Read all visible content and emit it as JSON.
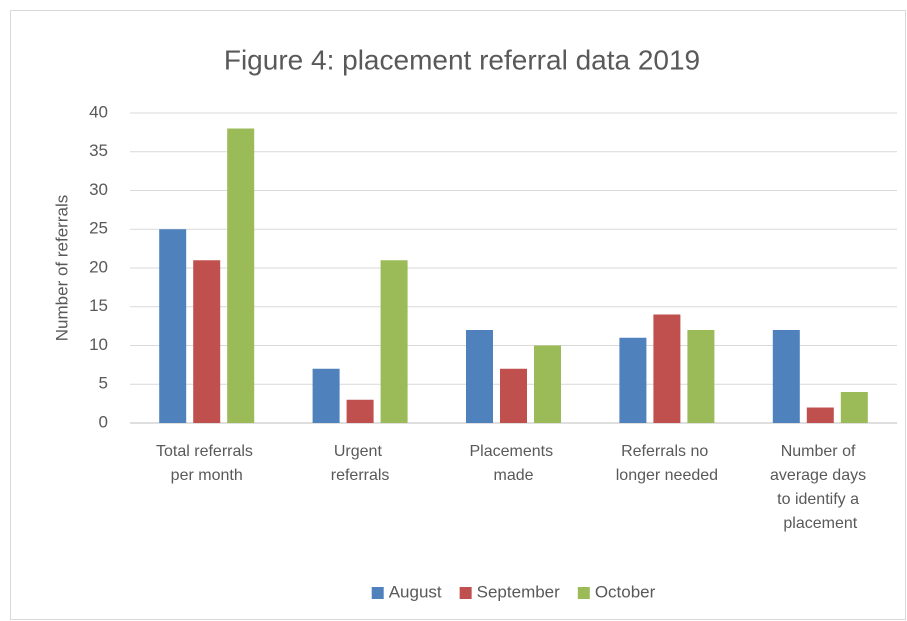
{
  "chart_data": {
    "type": "bar",
    "title": "Figure 4: placement referral data 2019",
    "y_label": "Number of referrals",
    "categories": [
      "Total referrals per month",
      "Urgent referrals",
      "Placements made",
      "Referrals no longer needed",
      "Number of average days to identify a placement"
    ],
    "series": [
      {
        "name": "August",
        "color": "#4f81bd",
        "values": [
          25,
          7,
          12,
          11,
          12
        ]
      },
      {
        "name": "September",
        "color": "#c0504d",
        "values": [
          21,
          3,
          7,
          14,
          2
        ]
      },
      {
        "name": "October",
        "color": "#9bbb59",
        "values": [
          38,
          21,
          10,
          12,
          4
        ]
      }
    ],
    "ylim": [
      0,
      40
    ],
    "yticks": [
      0,
      5,
      10,
      15,
      20,
      25,
      30,
      35,
      40
    ],
    "grid": true,
    "legend": "bottom"
  }
}
